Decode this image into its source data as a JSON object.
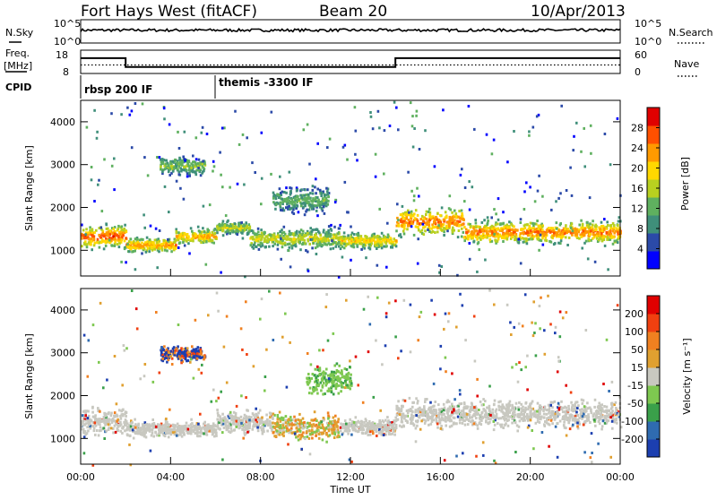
{
  "header": {
    "station": "Fort Hays West (fitACF)",
    "beam": "Beam 20",
    "date": "10/Apr/2013"
  },
  "noise_panel": {
    "left_label": "N.Sky",
    "right_label": "N.Search",
    "left_ticks": [
      "10^5",
      "10^0"
    ],
    "right_ticks": [
      "10^5",
      "10^0"
    ],
    "level_fraction": 0.55
  },
  "freq_panel": {
    "left_label_1": "Freq.",
    "left_label_2": "[MHz]",
    "right_label": "Nave",
    "left_ticks": [
      "18",
      "8"
    ],
    "right_ticks": [
      "60",
      "0"
    ],
    "freq_ylim": [
      8,
      18
    ],
    "freq_steps": [
      {
        "start": 0.0,
        "end": 2.0,
        "value": 14.6
      },
      {
        "start": 2.0,
        "end": 14.0,
        "value": 10.8
      },
      {
        "start": 14.0,
        "end": 24.0,
        "value": 14.6
      }
    ],
    "nave_ylim": [
      0,
      60
    ],
    "nave_value": 22
  },
  "cpid": {
    "label": "CPID",
    "items": [
      {
        "text": "rbsp 200 IF",
        "start": 0.0
      },
      {
        "text": "themis -3300 IF",
        "start": 6.0
      }
    ]
  },
  "chart_data": [
    {
      "type": "heatmap",
      "name": "power",
      "ylabel": "Slant Range [km]",
      "ylim": [
        400,
        4500
      ],
      "yticks": [
        "1000",
        "2000",
        "3000",
        "4000"
      ],
      "xlim": [
        0,
        24
      ],
      "colorbar": {
        "label": "Power [dB]",
        "ticks": [
          "28",
          "24",
          "20",
          "16",
          "12",
          "8",
          "4"
        ],
        "range": [
          0,
          32
        ],
        "colors": [
          "#0000ff",
          "#2b4aa8",
          "#3f8f7a",
          "#5fb05f",
          "#b8d020",
          "#ffd800",
          "#ff9a00",
          "#ff5000",
          "#e00000"
        ]
      },
      "bands": [
        {
          "x": [
            0.0,
            2.0
          ],
          "center": 1350,
          "width": 700,
          "level": 0.85
        },
        {
          "x": [
            2.0,
            4.2
          ],
          "center": 1150,
          "width": 450,
          "level": 0.75
        },
        {
          "x": [
            4.2,
            6.0
          ],
          "center": 1350,
          "width": 500,
          "level": 0.7
        },
        {
          "x": [
            6.0,
            7.5
          ],
          "center": 1550,
          "width": 400,
          "level": 0.55
        },
        {
          "x": [
            7.5,
            11.5
          ],
          "center": 1300,
          "width": 700,
          "level": 0.55
        },
        {
          "x": [
            11.5,
            14.0
          ],
          "center": 1250,
          "width": 500,
          "level": 0.65
        },
        {
          "x": [
            14.0,
            17.0
          ],
          "center": 1700,
          "width": 900,
          "level": 0.8
        },
        {
          "x": [
            17.0,
            24.0
          ],
          "center": 1450,
          "width": 700,
          "level": 0.8
        },
        {
          "x": [
            3.5,
            5.5
          ],
          "center": 3000,
          "width": 600,
          "level": 0.45
        },
        {
          "x": [
            8.5,
            11.0
          ],
          "center": 2200,
          "width": 800,
          "level": 0.4
        }
      ]
    },
    {
      "type": "heatmap",
      "name": "velocity",
      "ylabel": "Slant Range [km]",
      "ylim": [
        400,
        4500
      ],
      "yticks": [
        "1000",
        "2000",
        "3000",
        "4000"
      ],
      "xlim": [
        0,
        24
      ],
      "xticks": [
        "00:00",
        "04:00",
        "08:00",
        "12:00",
        "16:00",
        "20:00",
        "00:00"
      ],
      "xlabel": "Time UT",
      "colorbar": {
        "label": "Velocity [m s⁻¹]",
        "ticks": [
          "200",
          "100",
          "50",
          "15",
          "-15",
          "-50",
          "-100",
          "-200"
        ],
        "colors": [
          "#1c3fb0",
          "#2f6bb0",
          "#3aa04a",
          "#7ec850",
          "#c8c8c0",
          "#e0a030",
          "#f08020",
          "#f04010",
          "#e00000"
        ]
      },
      "bands": [
        {
          "x": [
            0.0,
            2.0
          ],
          "center": 1400,
          "width": 800,
          "kind": "gray"
        },
        {
          "x": [
            2.0,
            6.0
          ],
          "center": 1250,
          "width": 500,
          "kind": "gray"
        },
        {
          "x": [
            6.0,
            8.5
          ],
          "center": 1400,
          "width": 700,
          "kind": "gray"
        },
        {
          "x": [
            8.5,
            11.5
          ],
          "center": 1300,
          "width": 800,
          "kind": "mixed"
        },
        {
          "x": [
            11.5,
            14.0
          ],
          "center": 1300,
          "width": 500,
          "kind": "gray"
        },
        {
          "x": [
            14.0,
            24.0
          ],
          "center": 1600,
          "width": 900,
          "kind": "gray"
        },
        {
          "x": [
            3.5,
            5.5
          ],
          "center": 3000,
          "width": 500,
          "kind": "blue"
        },
        {
          "x": [
            10.0,
            12.0
          ],
          "center": 2400,
          "width": 900,
          "kind": "green"
        }
      ]
    }
  ]
}
